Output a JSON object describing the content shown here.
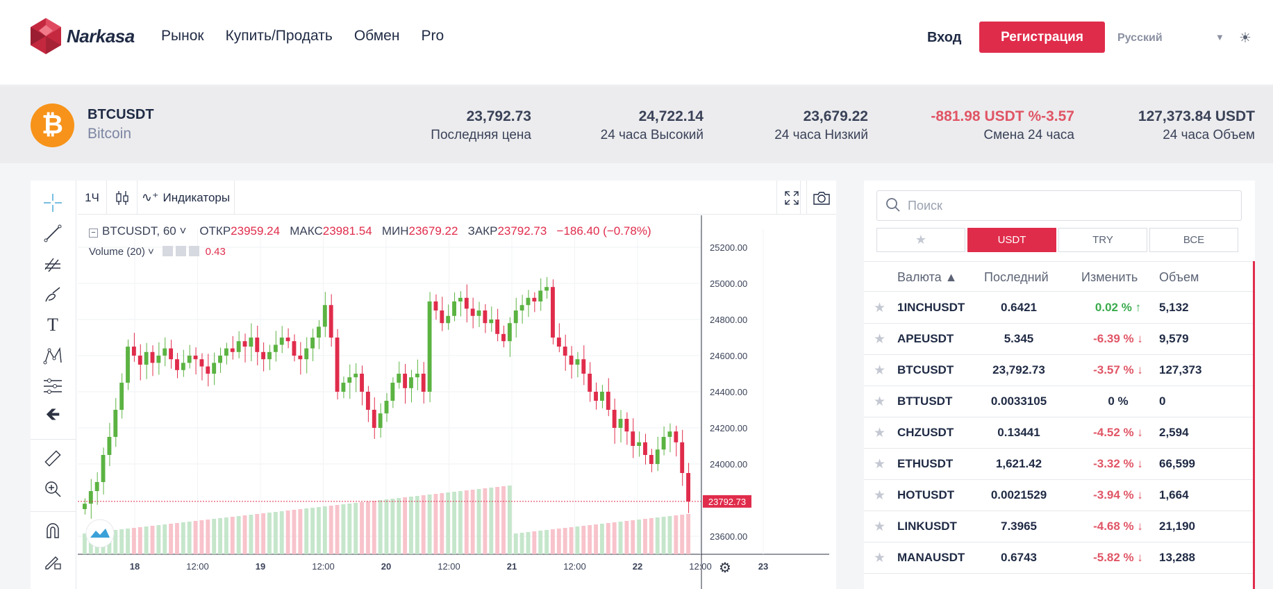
{
  "header": {
    "logo_text": "Narkasa",
    "nav": [
      "Рынок",
      "Купить/Продать",
      "Обмен",
      "Pro"
    ],
    "login": "Вход",
    "register": "Регистрация",
    "language": "Русский"
  },
  "ticker": {
    "coin_symbol": "₿",
    "pair": "BTCUSDT",
    "name": "Bitcoin",
    "last_price": "23,792.73",
    "last_price_label": "Последняя цена",
    "high": "24,722.14",
    "high_label": "24 часа Высокий",
    "low": "23,679.22",
    "low_label": "24 часа Низкий",
    "change": "-881.98 USDT %-3.57",
    "change_label": "Смена 24 часа",
    "volume": "127,373.84 USDT",
    "volume_label": "24 часа Объем"
  },
  "chart_toolbar": {
    "interval": "1Ч",
    "indicators": "Индикаторы"
  },
  "chart_legend": {
    "symbol": "BTCUSDT, 60",
    "open_label": "ОТКР",
    "open": "23959.24",
    "high_label": "МАКС",
    "high": "23981.54",
    "low_label": "МИН",
    "low": "23679.22",
    "close_label": "ЗАКР",
    "close": "23792.73",
    "change": "−186.40 (−0.78%)",
    "volume_label": "Volume (20)",
    "volume_value": "0.43"
  },
  "chart_data": {
    "type": "candlestick",
    "price_ticks": [
      "25200.00",
      "25000.00",
      "24800.00",
      "24600.00",
      "24400.00",
      "24200.00",
      "24000.00",
      "23600.00"
    ],
    "current_price_label": "23792.73",
    "x_ticks": [
      "18",
      "12:00",
      "19",
      "12:00",
      "20",
      "12:00",
      "21",
      "12:00",
      "22",
      "12:00",
      "23"
    ],
    "ylim": [
      23500,
      25300
    ],
    "close_series": [
      23780,
      23850,
      23900,
      24050,
      24150,
      24300,
      24450,
      24650,
      24600,
      24550,
      24620,
      24560,
      24600,
      24640,
      24580,
      24520,
      24560,
      24600,
      24580,
      24540,
      24500,
      24560,
      24600,
      24640,
      24620,
      24680,
      24650,
      24700,
      24620,
      24580,
      24620,
      24660,
      24700,
      24680,
      24600,
      24580,
      24640,
      24700,
      24760,
      24880,
      24700,
      24400,
      24450,
      24480,
      24500,
      24400,
      24300,
      24200,
      24280,
      24350,
      24450,
      24500,
      24420,
      24480,
      24500,
      24400,
      24900,
      24850,
      24780,
      24820,
      24900,
      24920,
      24860,
      24820,
      24850,
      24780,
      24800,
      24720,
      24680,
      24780,
      24850,
      24880,
      24920,
      24900,
      24960,
      24980,
      24700,
      24650,
      24600,
      24550,
      24580,
      24500,
      24400,
      24350,
      24400,
      24300,
      24200,
      24250,
      24180,
      24100,
      24120,
      24050,
      24000,
      24080,
      24150,
      24180,
      24120,
      23950,
      23792
    ]
  },
  "search": {
    "placeholder": "Поиск"
  },
  "filter_tabs": [
    "★",
    "USDT",
    "TRY",
    "ВСЕ"
  ],
  "table": {
    "headers": {
      "currency": "Валюта ▲",
      "last": "Последний",
      "change": "Изменить",
      "volume": "Объем"
    },
    "rows": [
      {
        "sym": "1INCHUSDT",
        "last": "0.6421",
        "chg": "0.02 %",
        "dir": "pos",
        "vol": "5,132"
      },
      {
        "sym": "APEUSDT",
        "last": "5.345",
        "chg": "-6.39 %",
        "dir": "neg",
        "vol": "9,579"
      },
      {
        "sym": "BTCUSDT",
        "last": "23,792.73",
        "chg": "-3.57 %",
        "dir": "neg",
        "vol": "127,373"
      },
      {
        "sym": "BTTUSDT",
        "last": "0.0033105",
        "chg": "0 %",
        "dir": "zero",
        "vol": "0"
      },
      {
        "sym": "CHZUSDT",
        "last": "0.13441",
        "chg": "-4.52 %",
        "dir": "neg",
        "vol": "2,594"
      },
      {
        "sym": "ETHUSDT",
        "last": "1,621.42",
        "chg": "-3.32 %",
        "dir": "neg",
        "vol": "66,599"
      },
      {
        "sym": "HOTUSDT",
        "last": "0.0021529",
        "chg": "-3.94 %",
        "dir": "neg",
        "vol": "1,664"
      },
      {
        "sym": "LINKUSDT",
        "last": "7.3965",
        "chg": "-4.68 %",
        "dir": "neg",
        "vol": "21,190"
      },
      {
        "sym": "MANAUSDT",
        "last": "0.6743",
        "chg": "-5.82 %",
        "dir": "neg",
        "vol": "13,288"
      }
    ]
  },
  "colors": {
    "accent": "#e02c4b",
    "up": "#5bb342",
    "down": "#e02c4b",
    "btc": "#f7931a"
  }
}
